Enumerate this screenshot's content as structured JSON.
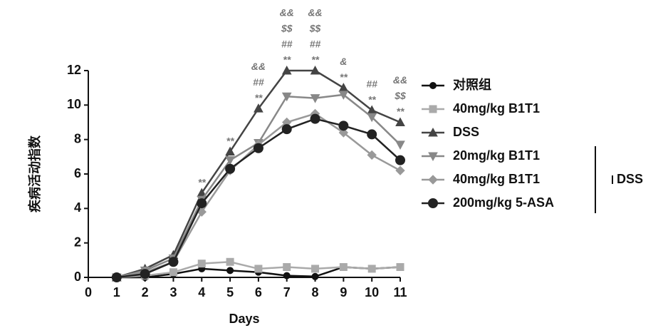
{
  "chart_data": {
    "type": "line",
    "x_label": "Days",
    "y_label": "疾病活动指数",
    "x": [
      1,
      2,
      3,
      4,
      5,
      6,
      7,
      8,
      9,
      10,
      11
    ],
    "xlim": [
      0,
      11
    ],
    "xticks": [
      0,
      1,
      2,
      3,
      4,
      5,
      6,
      7,
      8,
      9,
      10,
      11
    ],
    "ylim": [
      0,
      12
    ],
    "yticks": [
      0,
      2,
      4,
      6,
      8,
      10,
      12
    ],
    "series": [
      {
        "name": "对照组",
        "color": "#111111",
        "marker": "circle",
        "values": [
          0,
          0,
          0.2,
          0.5,
          0.4,
          0.3,
          0.1,
          0.05,
          0.6,
          0.5,
          0.6
        ]
      },
      {
        "name": "40mg/kg B1T1",
        "color": "#aaaaaa",
        "marker": "square",
        "values": [
          0,
          0.1,
          0.3,
          0.8,
          0.9,
          0.5,
          0.6,
          0.5,
          0.6,
          0.5,
          0.6
        ]
      },
      {
        "name": "DSS",
        "color": "#444444",
        "marker": "triangle",
        "values": [
          0,
          0.5,
          1.3,
          4.9,
          7.3,
          9.8,
          12,
          12,
          11,
          9.7,
          9.0
        ]
      },
      {
        "name": "20mg/kg B1T1",
        "color": "#888888",
        "marker": "triangle-down",
        "values": [
          0,
          0.4,
          1.1,
          4.5,
          6.8,
          7.8,
          10.5,
          10.4,
          10.6,
          9.3,
          7.7
        ]
      },
      {
        "name": "40mg/kg B1T1",
        "color": "#999999",
        "marker": "diamond",
        "values": [
          0,
          0.3,
          0.9,
          3.8,
          6.2,
          7.7,
          9.0,
          9.5,
          8.4,
          7.1,
          6.2
        ]
      },
      {
        "name": "200mg/kg 5-ASA",
        "color": "#222222",
        "marker": "big-circle",
        "values": [
          0,
          0.2,
          0.9,
          4.3,
          6.3,
          7.5,
          8.6,
          9.2,
          8.8,
          8.3,
          6.8
        ]
      }
    ],
    "legend_group": {
      "label": "DSS",
      "from": 3,
      "to": 6
    },
    "annotations": [
      {
        "x": 4,
        "text": [
          "**"
        ]
      },
      {
        "x": 5,
        "text": [
          "**"
        ]
      },
      {
        "x": 6,
        "text": [
          "&&",
          "##",
          "**"
        ]
      },
      {
        "x": 7,
        "text": [
          "&&",
          "$$",
          "##",
          "**"
        ]
      },
      {
        "x": 8,
        "text": [
          "&&",
          "$$",
          "##",
          "**"
        ]
      },
      {
        "x": 9,
        "text": [
          "&",
          "**"
        ]
      },
      {
        "x": 10,
        "text": [
          "##",
          "**"
        ]
      },
      {
        "x": 11,
        "text": [
          "&&",
          "$$",
          "**"
        ]
      }
    ]
  }
}
